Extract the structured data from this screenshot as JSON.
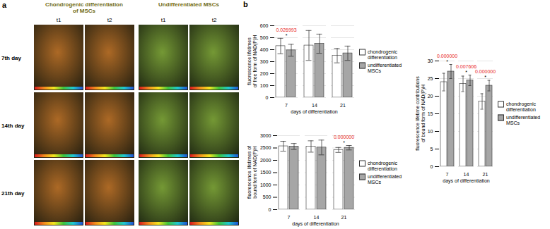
{
  "panel_a": {
    "letter": "a",
    "columns": [
      "Chondrogenic differentiation of MSCs",
      "Undifferentiated MSCs"
    ],
    "subcolumns": [
      "t1",
      "t2"
    ],
    "rows": [
      "7th day",
      "14th day",
      "21th day"
    ]
  },
  "panel_b": {
    "letter": "b"
  },
  "chart_data": [
    {
      "type": "bar",
      "y_label": "fluorescence lifetimes of free form of NAD(P)H",
      "x_label": "days of differentiation",
      "categories": [
        "7",
        "14",
        "21"
      ],
      "series": [
        {
          "name": "chondrogenic differentiation",
          "color": "#ffffff",
          "values": [
            430,
            435,
            350
          ],
          "errors": [
            65,
            125,
            60
          ]
        },
        {
          "name": "undifferentiated MSCs",
          "color": "#a6a6a6",
          "values": [
            395,
            450,
            370
          ],
          "errors": [
            50,
            80,
            60
          ]
        }
      ],
      "ylim": [
        0,
        600
      ],
      "yticks": [
        0,
        100,
        200,
        300,
        400,
        500,
        600
      ],
      "grid": true,
      "legend": "right",
      "annotations": [
        {
          "category": "7",
          "text": "*",
          "color": "#000000"
        },
        {
          "category": "7",
          "text": "0.026993",
          "color": "#e8251c"
        }
      ]
    },
    {
      "type": "bar",
      "y_label": "fluorescence lifetimes of bound form of NAD(P)H",
      "x_label": "days of differentiation",
      "categories": [
        "7",
        "14",
        "21"
      ],
      "series": [
        {
          "name": "chondrogenic differentiation",
          "color": "#ffffff",
          "values": [
            2570,
            2560,
            2420
          ],
          "errors": [
            200,
            230,
            100
          ]
        },
        {
          "name": "undifferentiated MSCs",
          "color": "#a6a6a6",
          "values": [
            2560,
            2520,
            2510
          ],
          "errors": [
            120,
            300,
            90
          ]
        }
      ],
      "ylim": [
        0,
        3000
      ],
      "yticks": [
        0,
        500,
        1000,
        1500,
        2000,
        2500,
        3000
      ],
      "grid": true,
      "legend": "right",
      "annotations": [
        {
          "category": "21",
          "text": "*",
          "color": "#000000"
        },
        {
          "category": "21",
          "text": "0.000000",
          "color": "#e8251c"
        }
      ]
    },
    {
      "type": "bar",
      "y_label": "fluorescence lifetime contributions of bound form of NAD(P)H",
      "x_label": "days of differentiation",
      "categories": [
        "7",
        "14",
        "21"
      ],
      "series": [
        {
          "name": "chondrogenic differentiation",
          "color": "#ffffff",
          "values": [
            24,
            23.5,
            18.5
          ],
          "errors": [
            2.5,
            2.2,
            2.2
          ]
        },
        {
          "name": "undifferentiated MSCs",
          "color": "#a6a6a6",
          "values": [
            27,
            24.5,
            23
          ],
          "errors": [
            2,
            1.5,
            1.5
          ]
        }
      ],
      "ylim": [
        0,
        30
      ],
      "yticks": [
        0,
        5,
        10,
        15,
        20,
        25,
        30
      ],
      "grid": true,
      "legend": "right",
      "annotations": [
        {
          "category": "7",
          "text": "*",
          "color": "#000000"
        },
        {
          "category": "7",
          "text": "0.000000",
          "color": "#e8251c"
        },
        {
          "category": "14",
          "text": "*",
          "color": "#000000"
        },
        {
          "category": "14",
          "text": "0.007606",
          "color": "#e8251c"
        },
        {
          "category": "21",
          "text": "*",
          "color": "#000000"
        },
        {
          "category": "21",
          "text": "0.000000",
          "color": "#e8251c"
        }
      ]
    }
  ]
}
